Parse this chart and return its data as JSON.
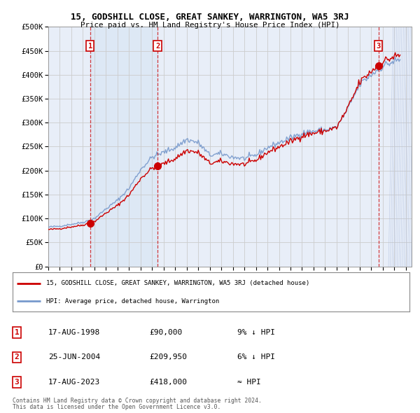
{
  "title": "15, GODSHILL CLOSE, GREAT SANKEY, WARRINGTON, WA5 3RJ",
  "subtitle": "Price paid vs. HM Land Registry's House Price Index (HPI)",
  "ylim": [
    0,
    500000
  ],
  "yticks": [
    0,
    50000,
    100000,
    150000,
    200000,
    250000,
    300000,
    350000,
    400000,
    450000,
    500000
  ],
  "xlim_start": 1995.0,
  "xlim_end": 2026.5,
  "sale_dates": [
    1998.625,
    2004.479,
    2023.625
  ],
  "sale_prices": [
    90000,
    209950,
    418000
  ],
  "sale_labels": [
    "1",
    "2",
    "3"
  ],
  "legend_label_red": "15, GODSHILL CLOSE, GREAT SANKEY, WARRINGTON, WA5 3RJ (detached house)",
  "legend_label_blue": "HPI: Average price, detached house, Warrington",
  "table_rows": [
    [
      "1",
      "17-AUG-1998",
      "£90,000",
      "9% ↓ HPI"
    ],
    [
      "2",
      "25-JUN-2004",
      "£209,950",
      "6% ↓ HPI"
    ],
    [
      "3",
      "17-AUG-2023",
      "£418,000",
      "≈ HPI"
    ]
  ],
  "footnote1": "Contains HM Land Registry data © Crown copyright and database right 2024.",
  "footnote2": "This data is licensed under the Open Government Licence v3.0.",
  "background_color": "#ffffff",
  "plot_bg_color": "#e8eef8",
  "grid_color": "#cccccc",
  "red_color": "#cc0000",
  "blue_color": "#7799cc",
  "shade_color": "#dde8f5"
}
